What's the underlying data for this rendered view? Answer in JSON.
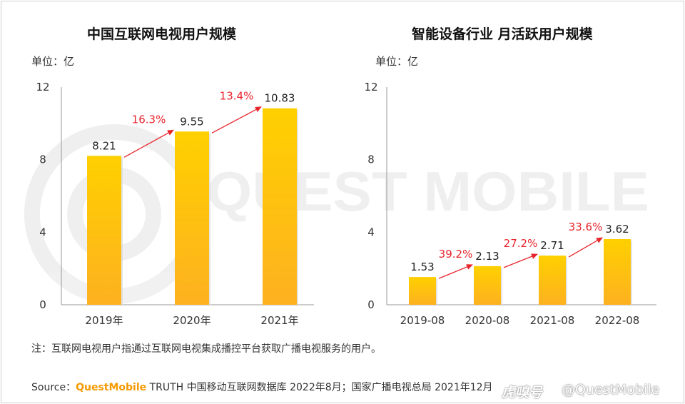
{
  "watermark": {
    "text": "QUEST MOBILE"
  },
  "charts": [
    {
      "title": "中国互联网电视用户规模",
      "unit_label": "单位：亿"
    },
    {
      "title": "智能设备行业 月活跃用户规模",
      "unit_label": "单位：亿"
    }
  ],
  "chart_data": [
    {
      "type": "bar",
      "title": "中国互联网电视用户规模",
      "unit": "亿",
      "categories": [
        "2019年",
        "2020年",
        "2021年"
      ],
      "values": [
        8.21,
        9.55,
        10.83
      ],
      "value_labels": [
        "8.21",
        "9.55",
        "10.83"
      ],
      "growth_labels": [
        "16.3%",
        "13.4%"
      ],
      "yticks": [
        0,
        4,
        8,
        12
      ],
      "ylim": [
        0,
        12
      ],
      "bar_color": "#ffb400",
      "arrow_color": "#e8242b"
    },
    {
      "type": "bar",
      "title": "智能设备行业 月活跃用户规模",
      "unit": "亿",
      "categories": [
        "2019-08",
        "2020-08",
        "2021-08",
        "2022-08"
      ],
      "values": [
        1.53,
        2.13,
        2.71,
        3.62
      ],
      "value_labels": [
        "1.53",
        "2.13",
        "2.71",
        "3.62"
      ],
      "growth_labels": [
        "39.2%",
        "27.2%",
        "33.6%"
      ],
      "yticks": [
        0,
        4,
        8,
        12
      ],
      "ylim": [
        0,
        12
      ],
      "bar_color": "#ffb400",
      "arrow_color": "#e8242b"
    }
  ],
  "footer": {
    "note": "注：互联网电视用户指通过互联网电视集成播控平台获取广播电视服务的用户。",
    "source_prefix": "Source：",
    "source_brand": "QuestMobile",
    "source_rest": " TRUTH 中国移动互联网数据库 2022年8月；国家广播电视总局 2021年12月",
    "credit_logo": "虎嗅号",
    "credit_handle": "@QuestMobile"
  }
}
